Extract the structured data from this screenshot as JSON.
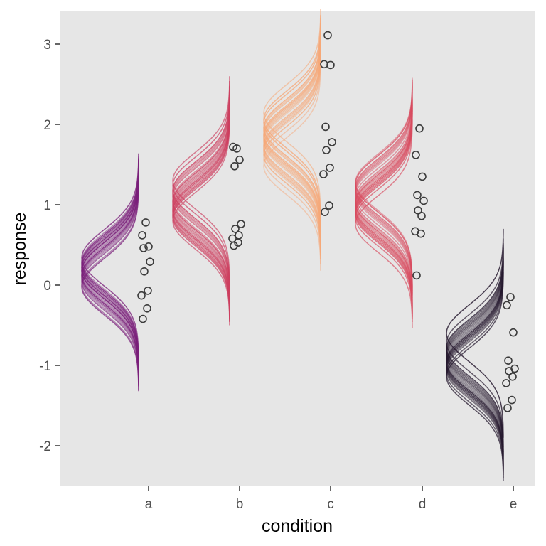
{
  "chart_data": {
    "type": "scatter",
    "title": "",
    "xlabel": "condition",
    "ylabel": "response",
    "categories": [
      "a",
      "b",
      "c",
      "d",
      "e"
    ],
    "y_ticks": [
      -2,
      -1,
      0,
      1,
      2,
      3
    ],
    "y_tick_labels": [
      "-2",
      "-1",
      "0",
      "1",
      "2",
      "3"
    ],
    "ylim": [
      -2.5,
      3.3
    ],
    "grid": false,
    "legend": "none",
    "background": "#e6e6e6",
    "point_color": "#3b3b3b",
    "series": [
      {
        "category": "a",
        "color": "#7a1f7a",
        "points": [
          0.78,
          0.62,
          0.48,
          0.46,
          0.29,
          0.17,
          -0.07,
          -0.13,
          -0.29,
          -0.42
        ],
        "posterior_centers": [
          0.06,
          0.22,
          0.12,
          0.3,
          0.18,
          0.04,
          0.14,
          0.26,
          0.1,
          0.2,
          0.16,
          -0.02,
          0.24,
          0.08,
          0.34,
          0.12,
          0.0,
          0.28,
          0.18,
          0.22
        ]
      },
      {
        "category": "b",
        "color": "#cd3f5f",
        "points": [
          1.7,
          1.72,
          1.56,
          1.48,
          0.76,
          0.7,
          0.62,
          0.58,
          0.53,
          0.49
        ],
        "posterior_centers": [
          1.02,
          0.86,
          1.1,
          0.96,
          1.18,
          0.8,
          1.06,
          0.92,
          1.24,
          0.98,
          1.12,
          0.88,
          1.0,
          1.16,
          0.94,
          1.3,
          0.9,
          1.04,
          0.84,
          1.14
        ]
      },
      {
        "category": "c",
        "color": "#f6a878",
        "points": [
          3.11,
          2.75,
          2.74,
          1.97,
          1.78,
          1.68,
          1.46,
          1.38,
          0.99,
          0.91
        ],
        "posterior_centers": [
          1.78,
          1.62,
          1.92,
          1.7,
          2.02,
          1.84,
          1.56,
          1.96,
          1.74,
          2.14,
          1.66,
          1.88,
          1.8,
          1.48,
          2.06,
          1.72,
          1.94,
          1.86,
          1.68,
          1.82
        ]
      },
      {
        "category": "d",
        "color": "#d84a5e",
        "points": [
          1.95,
          1.62,
          1.35,
          1.12,
          1.05,
          0.93,
          0.86,
          0.67,
          0.64,
          0.12
        ],
        "posterior_centers": [
          1.04,
          0.9,
          1.18,
          0.98,
          1.26,
          0.84,
          1.1,
          0.94,
          1.22,
          1.0,
          1.14,
          0.88,
          1.06,
          1.28,
          0.96,
          0.76,
          1.16,
          1.02,
          0.92,
          1.2
        ]
      },
      {
        "category": "e",
        "color": "#25182e",
        "points": [
          -0.15,
          -0.25,
          -0.59,
          -0.94,
          -1.04,
          -1.07,
          -1.14,
          -1.22,
          -1.43,
          -1.53
        ],
        "posterior_centers": [
          -0.92,
          -1.02,
          -0.84,
          -0.96,
          -0.78,
          -1.1,
          -0.88,
          -0.98,
          -0.72,
          -1.06,
          -0.9,
          -1.14,
          -0.82,
          -0.94,
          -1.0,
          -0.86,
          -1.04,
          -0.6,
          -0.96,
          -0.8
        ]
      }
    ]
  }
}
